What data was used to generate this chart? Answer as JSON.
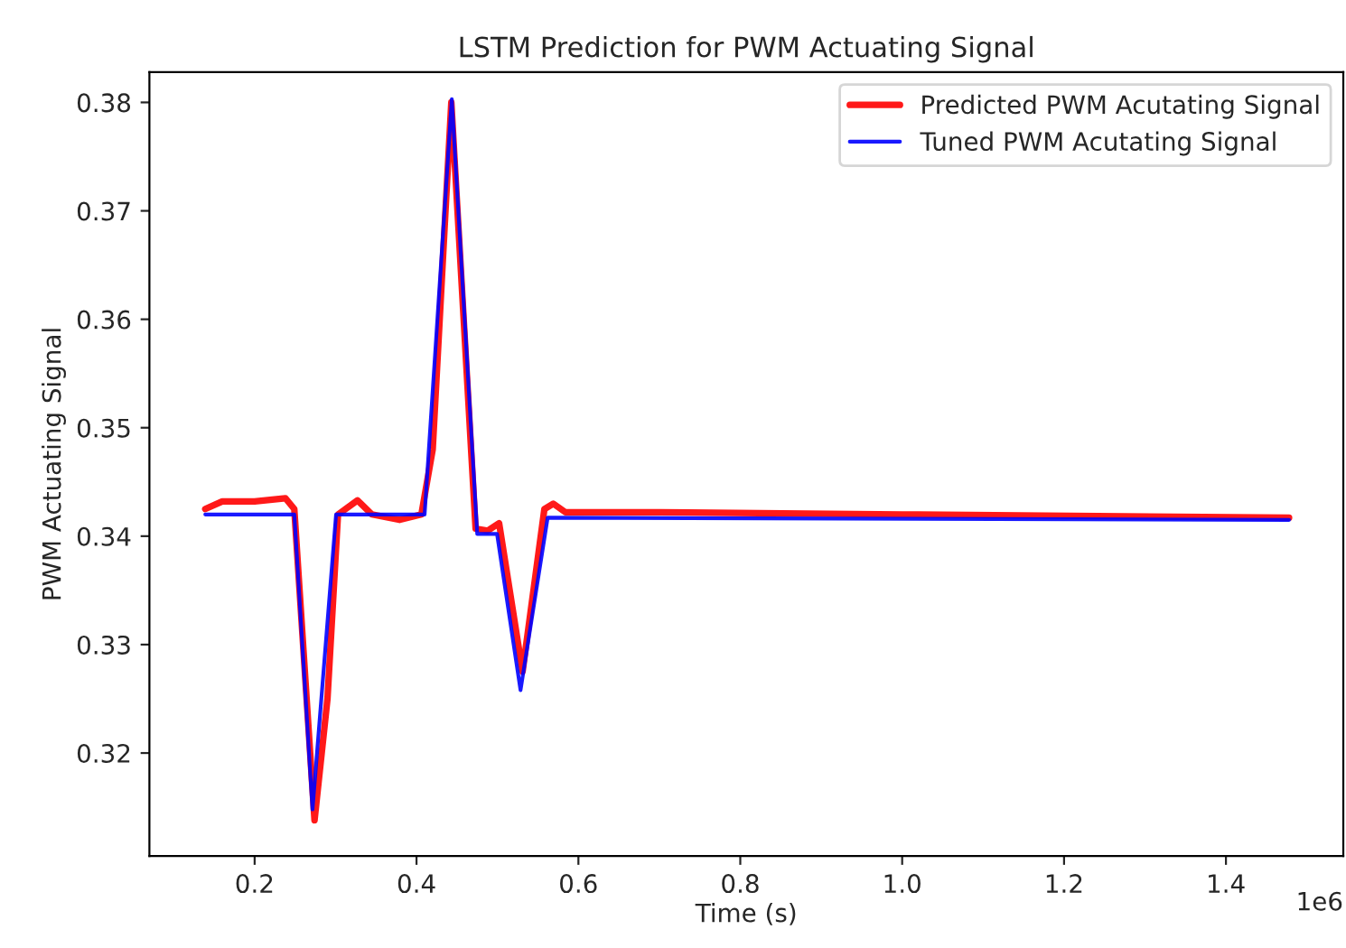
{
  "chart_data": {
    "type": "line",
    "title": "LSTM Prediction for PWM Actuating Signal",
    "xlabel": "Time (s)",
    "ylabel": "PWM Actuating Signal",
    "series": [
      {
        "name": "Predicted PWM Acutating Signal",
        "color": "#ff0000",
        "x": [
          0.139,
          0.16,
          0.2,
          0.238,
          0.249,
          0.274,
          0.29,
          0.303,
          0.327,
          0.345,
          0.379,
          0.406,
          0.42,
          0.443,
          0.473,
          0.488,
          0.502,
          0.531,
          0.558,
          0.569,
          0.584,
          0.7,
          1.0,
          1.478
        ],
        "values": [
          0.3425,
          0.3432,
          0.3432,
          0.3435,
          0.3425,
          0.3138,
          0.325,
          0.342,
          0.3433,
          0.342,
          0.3415,
          0.342,
          0.348,
          0.38,
          0.3407,
          0.3405,
          0.3412,
          0.3275,
          0.3425,
          0.343,
          0.3422,
          0.3422,
          0.342,
          0.3417
        ]
      },
      {
        "name": "Tuned PWM Acutating Signal",
        "color": "#0000ff",
        "x": [
          0.139,
          0.249,
          0.2715,
          0.3006,
          0.41,
          0.4436,
          0.475,
          0.4995,
          0.5285,
          0.562,
          1.478
        ],
        "values": [
          0.342,
          0.342,
          0.3148,
          0.342,
          0.342,
          0.3803,
          0.3402,
          0.3402,
          0.3258,
          0.3417,
          0.3415
        ]
      }
    ],
    "xlim": [
      0.07,
      1.545
    ],
    "ylim": [
      0.3105,
      0.3828
    ],
    "xticks": [
      0.2,
      0.4,
      0.6,
      0.8,
      {
        "value": 1,
        "label": "1.0"
      },
      1.2,
      1.4
    ],
    "yticks": [
      0.32,
      0.33,
      0.34,
      0.35,
      0.36,
      0.37,
      0.38
    ],
    "annotations": [
      "1e6"
    ],
    "legend": "top right",
    "grid": false
  }
}
